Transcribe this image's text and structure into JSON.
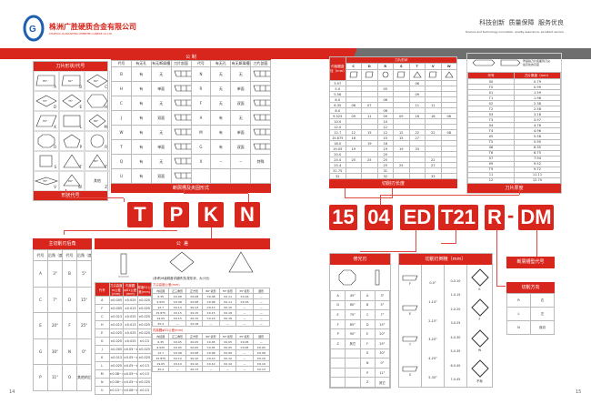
{
  "header": {
    "company_cn": "株洲广胜硬质合金有限公司",
    "company_en": "ZHUZHOU GUANGSHENG CEMENTED CARBIDE CO.,LTD.",
    "slogan_cn": "科技创新  质量保障  服务优良",
    "slogan_en": "Science and technology innovation, quality assurance, excellent service",
    "colors": {
      "red": "#d9261c",
      "gray": "#6e6e6e"
    }
  },
  "shape_table": {
    "title": "刀片形状/代号",
    "footer": "形状代号",
    "items": [
      {
        "code": "A",
        "angle": "85°"
      },
      {
        "code": "B",
        "angle": "82°"
      },
      {
        "code": "C",
        "angle": "80°"
      },
      {
        "code": "D",
        "angle": "55°"
      },
      {
        "code": "E",
        "angle": "75°"
      },
      {
        "code": "H",
        "angle": ""
      },
      {
        "code": "K",
        "angle": "55°"
      },
      {
        "code": "L",
        "angle": ""
      },
      {
        "code": "M",
        "angle": "86°"
      },
      {
        "code": "O",
        "angle": ""
      },
      {
        "code": "P",
        "angle": ""
      },
      {
        "code": "R",
        "angle": ""
      },
      {
        "code": "S",
        "angle": ""
      },
      {
        "code": "T",
        "angle": ""
      },
      {
        "code": "T",
        "angle": "80°"
      },
      {
        "code": "V",
        "angle": "35°"
      },
      {
        "code": "W",
        "angle": "80°"
      },
      {
        "code": "Z",
        "angle": "其他"
      }
    ]
  },
  "clamp_table": {
    "title": "公  制",
    "footer": "断屑槽及夹固形式",
    "headers": [
      "代号",
      "有无孔",
      "有无断屑槽",
      "刀片剖面",
      "代号",
      "有无孔",
      "有无断屑槽",
      "刀片剖面"
    ],
    "rows": [
      [
        "B",
        "有",
        "无",
        "",
        "N",
        "无",
        "无",
        ""
      ],
      [
        "H",
        "有",
        "单面",
        "",
        "R",
        "无",
        "单面",
        ""
      ],
      [
        "C",
        "有",
        "无",
        "",
        "F",
        "无",
        "双面",
        ""
      ],
      [
        "J",
        "有",
        "双面",
        "",
        "A",
        "有",
        "无",
        ""
      ],
      [
        "W",
        "有",
        "无",
        "",
        "M",
        "有",
        "单面",
        ""
      ],
      [
        "T",
        "有",
        "单面",
        "",
        "G",
        "有",
        "双面",
        ""
      ],
      [
        "Q",
        "有",
        "无",
        "",
        "X",
        "--",
        "--",
        "特殊"
      ],
      [
        "U",
        "有",
        "双面",
        "",
        "",
        "",
        "",
        ""
      ]
    ]
  },
  "code_left": [
    "T",
    "P",
    "K",
    "N"
  ],
  "relief_table": {
    "title": "主切削刃后角",
    "headers": [
      "代号",
      "后角（度）",
      "代号",
      "后角（度）"
    ],
    "rows": [
      [
        "A",
        "3°",
        "B",
        "5°"
      ],
      [
        "C",
        "7°",
        "D",
        "15°"
      ],
      [
        "E",
        "20°",
        "F",
        "25°"
      ],
      [
        "G",
        "30°",
        "N",
        "0°"
      ],
      [
        "P",
        "11°",
        "O",
        "其他的后角"
      ]
    ]
  },
  "tolerance": {
    "title": "公  差",
    "left_headers": [
      "代号",
      "刀尖高度m公差(mm)",
      "内接圆φD1公差(mm)",
      "厚度S1公差(mm)"
    ],
    "left_rows": [
      [
        "A",
        "±0.005",
        "±0.025",
        "±0.025"
      ],
      [
        "F",
        "±0.005",
        "±0.013",
        "±0.025"
      ],
      [
        "C",
        "±0.013",
        "±0.025",
        "±0.025"
      ],
      [
        "H",
        "±0.013",
        "±0.013",
        "±0.025"
      ],
      [
        "E",
        "±0.025",
        "±0.025",
        "±0.025"
      ],
      [
        "G",
        "±0.025",
        "±0.025",
        "±0.13"
      ],
      [
        "J",
        "±0.005",
        "±0.05~±0.13",
        "±0.025"
      ],
      [
        "K",
        "±0.013",
        "±0.05~±0.13",
        "±0.025"
      ],
      [
        "L",
        "±0.025",
        "±0.05~±0.13",
        "±0.13"
      ],
      [
        "M",
        "±0.08~±0.18",
        "±0.05~±0.13",
        "±0.13"
      ],
      [
        "N",
        "±0.08~±0.18",
        "±0.05~±0.13",
        "±0.025"
      ],
      [
        "U",
        "±0.13~±0.38",
        "±0.08~±0.25",
        "±0.13"
      ]
    ],
    "note": "(参考)M级精度详细情况(按形状、大小分)",
    "m_title": "刀尖高度公差(mm)",
    "d_title": "内接圆φD1公差(mm)",
    "sub_headers": [
      "内接圆",
      "正三角形",
      "正方形",
      "80°菱形",
      "55°菱形",
      "35°菱形",
      "圆形"
    ],
    "m_rows": [
      [
        "6.35",
        "±0.08",
        "±0.08",
        "±0.08",
        "±0.11",
        "±0.16",
        "—"
      ],
      [
        "9.525",
        "±0.08",
        "±0.08",
        "±0.08",
        "±0.11",
        "±0.16",
        "—"
      ],
      [
        "12.7",
        "±0.13",
        "±0.13",
        "±0.13",
        "±0.15",
        "—",
        "—"
      ],
      [
        "15.875",
        "±0.15",
        "±0.15",
        "±0.15",
        "±0.18",
        "—",
        "—"
      ],
      [
        "19.05",
        "±0.15",
        "±0.15",
        "±0.15",
        "±0.18",
        "—",
        "—"
      ],
      [
        "25.4",
        "—",
        "±0.18",
        "—",
        "—",
        "—",
        "—"
      ]
    ],
    "d_rows": [
      [
        "6.35",
        "±0.05",
        "±0.05",
        "±0.05",
        "±0.05",
        "±0.05",
        "—"
      ],
      [
        "9.525",
        "±0.05",
        "±0.05",
        "±0.05",
        "±0.05",
        "±0.05",
        "±0.05"
      ],
      [
        "12.7",
        "±0.08",
        "±0.08",
        "±0.08",
        "±0.08",
        "—",
        "±0.08"
      ],
      [
        "15.875",
        "±0.10",
        "±0.10",
        "±0.10",
        "±0.10",
        "—",
        "±0.10"
      ],
      [
        "19.05",
        "±0.10",
        "±0.10",
        "±0.10",
        "±0.10",
        "—",
        "±0.10"
      ],
      [
        "25.4",
        "—",
        "±0.13",
        "—",
        "—",
        "—",
        "±0.13"
      ]
    ]
  },
  "ic_table": {
    "title": "刀片形状",
    "corner": "内接圆直径（mm）",
    "footer": "切削刃长度",
    "cols": [
      "C",
      "D",
      "R",
      "S",
      "T",
      "V",
      "W"
    ],
    "rows": [
      [
        "3.97",
        "",
        "",
        "",
        "",
        "06",
        "",
        ""
      ],
      [
        "5.0",
        "",
        "",
        "05",
        "",
        "",
        "",
        ""
      ],
      [
        "5.56",
        "",
        "",
        "",
        "",
        "09",
        "",
        ""
      ],
      [
        "6.0",
        "",
        "",
        "06",
        "",
        "",
        "",
        ""
      ],
      [
        "6.35",
        "06",
        "07",
        "",
        "",
        "11",
        "11",
        ""
      ],
      [
        "8.0",
        "",
        "",
        "08",
        "",
        "",
        "",
        ""
      ],
      [
        "9.525",
        "09",
        "11",
        "09",
        "09",
        "16",
        "16",
        "06"
      ],
      [
        "10.0",
        "",
        "",
        "10",
        "",
        "",
        "",
        ""
      ],
      [
        "12.0",
        "",
        "",
        "12",
        "",
        "",
        "",
        ""
      ],
      [
        "12.7",
        "12",
        "15",
        "12",
        "12",
        "22",
        "22",
        "08"
      ],
      [
        "15.875",
        "16",
        "",
        "15",
        "15",
        "27",
        "",
        ""
      ],
      [
        "16.0",
        "",
        "19",
        "16",
        "",
        "",
        "",
        ""
      ],
      [
        "19.05",
        "19",
        "",
        "19",
        "19",
        "33",
        "",
        ""
      ],
      [
        "20.0",
        "",
        "",
        "20",
        "",
        "",
        "",
        ""
      ],
      [
        "25.0",
        "25",
        "25",
        "25",
        "",
        "",
        "22",
        ""
      ],
      [
        "25.4",
        "",
        "",
        "25",
        "25",
        "",
        "27",
        ""
      ],
      [
        "31.75",
        "",
        "",
        "31",
        "",
        "",
        "",
        ""
      ],
      [
        "32",
        "",
        "",
        "32",
        "",
        "",
        "33",
        ""
      ]
    ]
  },
  "thickness_table": {
    "note": "厚度指刀片底面到刀尖最高处的高度",
    "headers": [
      "代号",
      "刀片厚度（mm）"
    ],
    "footer": "刀片厚度",
    "rows": [
      [
        "00",
        "0.79"
      ],
      [
        "T0",
        "0.99"
      ],
      [
        "01",
        "1.59"
      ],
      [
        "T1",
        "1.98"
      ],
      [
        "02",
        "2.38"
      ],
      [
        "T2",
        "2.58"
      ],
      [
        "03",
        "3.18"
      ],
      [
        "T3",
        "3.97"
      ],
      [
        "04",
        "4.76"
      ],
      [
        "T4",
        "4.96"
      ],
      [
        "05",
        "5.56"
      ],
      [
        "T5",
        "5.95"
      ],
      [
        "06",
        "6.35"
      ],
      [
        "T6",
        "6.75"
      ],
      [
        "07",
        "7.94"
      ],
      [
        "09",
        "9.52"
      ],
      [
        "T9",
        "9.72"
      ],
      [
        "11",
        "11.11"
      ],
      [
        "12",
        "12.70"
      ]
    ]
  },
  "code_right": [
    "15",
    "04",
    "ED",
    "T21",
    "R",
    "DM"
  ],
  "code_dash": "-",
  "wiper_table": {
    "title": "修光刃",
    "rows": [
      [
        "A",
        "45°",
        "A",
        "3°"
      ],
      [
        "D",
        "60°",
        "B",
        "5°"
      ],
      [
        "E",
        "75°",
        "C",
        "7°"
      ],
      [
        "F",
        "85°",
        "D",
        "15°"
      ],
      [
        "P",
        "90°",
        "E",
        "20°"
      ],
      [
        "Z",
        "其它",
        "F",
        "25°"
      ],
      [
        "",
        "",
        "G",
        "30°"
      ],
      [
        "",
        "",
        "N",
        "0°"
      ],
      [
        "",
        "",
        "P",
        "11°"
      ],
      [
        "",
        "",
        "Z",
        "其它"
      ]
    ]
  },
  "chamfer_table": {
    "title": "切削刃倒棱（mm）",
    "types": [
      "F",
      "E",
      "T",
      "S"
    ],
    "angles": [
      "0-0°",
      "1-10°",
      "2-15°",
      "3-20°",
      "4-25°",
      "5-30°"
    ],
    "widths": [
      "0-0.10",
      "1-0.15",
      "2-0.20",
      "3-0.25",
      "4-0.30",
      "5-0.35",
      "6-0.40",
      "7-0.45"
    ],
    "shapes": [
      "K",
      "F",
      "W",
      "不标"
    ]
  },
  "chipbreaker_label": "断屑槽型代号",
  "direction_table": {
    "title": "切削方向",
    "rows": [
      [
        "R",
        "右"
      ],
      [
        "L",
        "左"
      ],
      [
        "N",
        "双向"
      ]
    ]
  },
  "pages": {
    "left": "14",
    "right": "15"
  }
}
